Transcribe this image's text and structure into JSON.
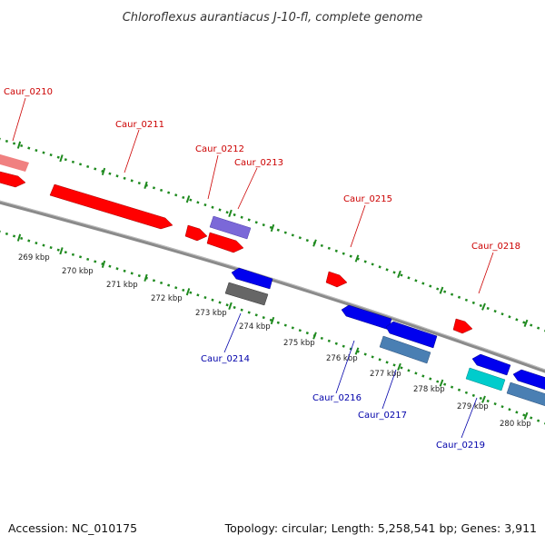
{
  "title": "Chloroflexus aurantiacus J-10-fl, complete genome",
  "footer": {
    "accession": "Accession: NC_010175",
    "stats": "Topology: circular; Length: 5,258,541 bp; Genes: 3,911"
  },
  "colors": {
    "background": "#ffffff",
    "backbone": "#8a8a8a",
    "tick": "#1f8a1f",
    "forward_label": "#cc0000",
    "reverse_label": "#0000aa"
  },
  "ticks": [
    {
      "label": "269 kbp"
    },
    {
      "label": "270 kbp"
    },
    {
      "label": "271 kbp"
    },
    {
      "label": "272 kbp"
    },
    {
      "label": "273 kbp"
    },
    {
      "label": "274 kbp"
    },
    {
      "label": "275 kbp"
    },
    {
      "label": "276 kbp"
    },
    {
      "label": "277 kbp"
    },
    {
      "label": "278 kbp"
    },
    {
      "label": "279 kbp"
    },
    {
      "label": "280 kbp"
    }
  ],
  "labels": {
    "Caur_0210": "Caur_0210",
    "Caur_0211": "Caur_0211",
    "Caur_0212": "Caur_0212",
    "Caur_0213": "Caur_0213",
    "Caur_0214": "Caur_0214",
    "Caur_0215": "Caur_0215",
    "Caur_0216": "Caur_0216",
    "Caur_0217": "Caur_0217",
    "Caur_0218": "Caur_0218",
    "Caur_0219": "Caur_0219"
  }
}
